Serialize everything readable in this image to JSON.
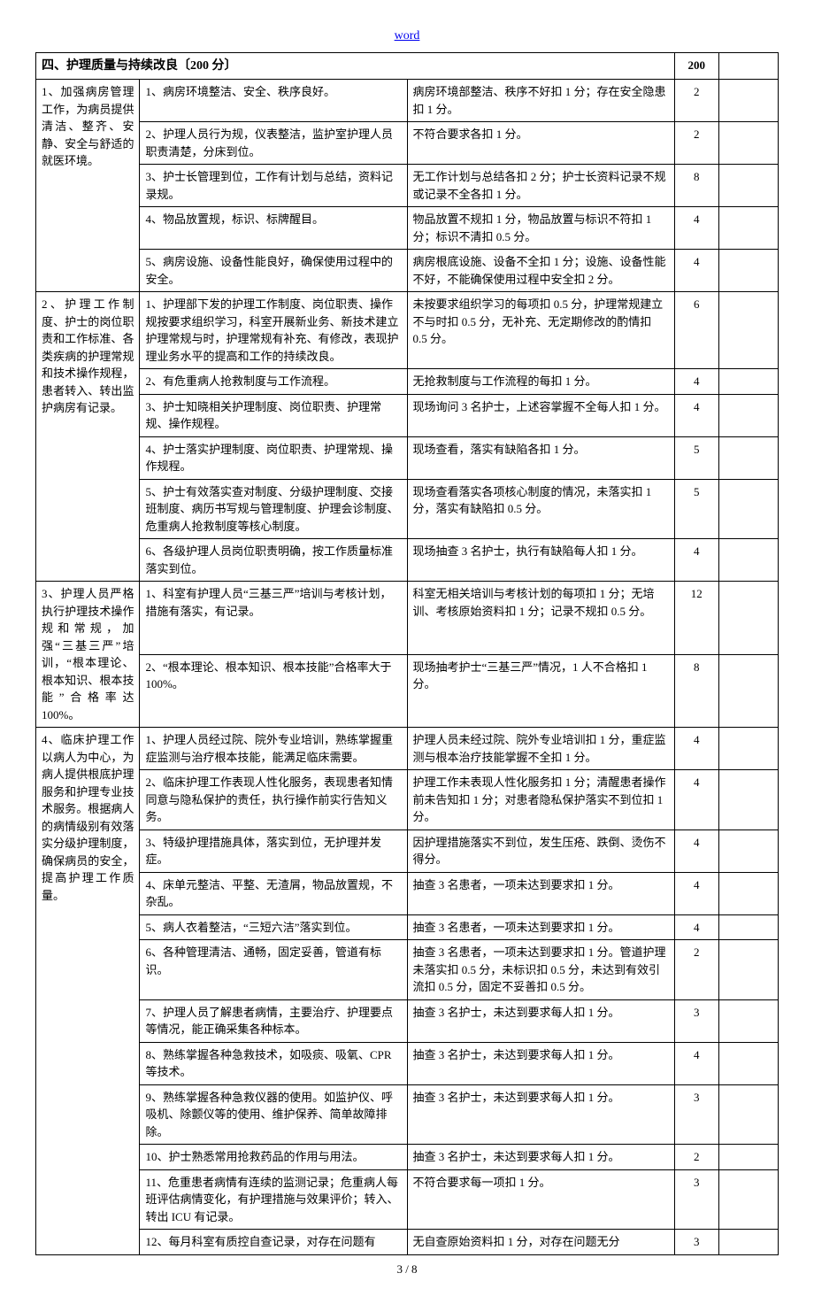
{
  "header_link": "word",
  "footer": "3 / 8",
  "section": {
    "title": "四、护理质量与持续改良〔200 分〕",
    "total_score": "200"
  },
  "groups": [
    {
      "item": "1、加强病房管理工作，为病员提供清洁、整齐、安静、安全与舒适的就医环境。",
      "rows": [
        {
          "standard": "1、病房环境整洁、安全、秩序良好。",
          "deduct": "病房环境部整洁、秩序不好扣 1 分；存在安全隐患扣 1 分。",
          "score": "2"
        },
        {
          "standard": "2、护理人员行为规，仪表整洁，监护室护理人员职责清楚，分床到位。",
          "deduct": "不符合要求各扣 1 分。",
          "score": "2"
        },
        {
          "standard": "3、护士长管理到位，工作有计划与总结，资料记录规。",
          "deduct": "无工作计划与总结各扣 2 分；护士长资料记录不规或记录不全各扣 1 分。",
          "score": "8"
        },
        {
          "standard": "4、物品放置规，标识、标牌醒目。",
          "deduct": "物品放置不规扣 1 分，物品放置与标识不符扣 1 分；标识不清扣 0.5 分。",
          "score": "4"
        },
        {
          "standard": "5、病房设施、设备性能良好，确保使用过程中的安全。",
          "deduct": "病房根底设施、设备不全扣 1 分；设施、设备性能不好，不能确保使用过程中安全扣 2 分。",
          "score": "4"
        }
      ]
    },
    {
      "item": "2、护理工作制度、护士的岗位职责和工作标准、各类疾病的护理常规和技术操作规程，患者转入、转出监护病房有记录。",
      "rows": [
        {
          "standard": "1、护理部下发的护理工作制度、岗位职责、操作规按要求组织学习，科室开展新业务、新技术建立护理常规与时，护理常规有补充、有修改，表现护理业务水平的提高和工作的持续改良。",
          "deduct": "未按要求组织学习的每项扣 0.5 分，护理常规建立不与时扣 0.5 分，无补充、无定期修改的酌情扣 0.5 分。",
          "score": "6"
        },
        {
          "standard": "2、有危重病人抢救制度与工作流程。",
          "deduct": "无抢救制度与工作流程的每扣 1 分。",
          "score": "4"
        },
        {
          "standard": "3、护士知晓相关护理制度、岗位职责、护理常规、操作规程。",
          "deduct": "现场询问 3 名护士，上述容掌握不全每人扣 1 分。",
          "score": "4"
        },
        {
          "standard": "4、护士落实护理制度、岗位职责、护理常规、操作规程。",
          "deduct": "现场查看，落实有缺陷各扣 1 分。",
          "score": "5"
        },
        {
          "standard": "5、护士有效落实查对制度、分级护理制度、交接班制度、病历书写规与管理制度、护理会诊制度、危重病人抢救制度等核心制度。",
          "deduct": "现场查看落实各项核心制度的情况，未落实扣 1 分，落实有缺陷扣 0.5 分。",
          "score": "5"
        },
        {
          "standard": "6、各级护理人员岗位职责明确，按工作质量标准落实到位。",
          "deduct": "现场抽查 3 名护士，执行有缺陷每人扣 1 分。",
          "score": "4"
        }
      ]
    },
    {
      "item": "3、护理人员严格执行护理技术操作规和常规，加强“三基三严”培训，“根本理论、根本知识、根本技能”合格率达 100%。",
      "rows": [
        {
          "standard": "1、科室有护理人员“三基三严”培训与考核计划，措施有落实，有记录。",
          "deduct": "科室无相关培训与考核计划的每项扣 1 分；无培训、考核原始资料扣 1 分；记录不规扣 0.5 分。",
          "score": "12"
        },
        {
          "standard": "2、“根本理论、根本知识、根本技能”合格率大于 100%。",
          "deduct": "现场抽考护士“三基三严”情况，1 人不合格扣 1 分。",
          "score": "8"
        }
      ]
    },
    {
      "item": "4、临床护理工作以病人为中心，为病人提供根底护理服务和护理专业技术服务。根据病人的病情级别有效落实分级护理制度，确保病员的安全，提高护理工作质量。",
      "rows": [
        {
          "standard": "1、护理人员经过院、院外专业培训，熟练掌握重症监测与治疗根本技能，能满足临床需要。",
          "deduct": "护理人员未经过院、院外专业培训扣 1 分，重症监测与根本治疗技能掌握不全扣 1 分。",
          "score": "4"
        },
        {
          "standard": "2、临床护理工作表现人性化服务，表现患者知情同意与隐私保护的责任，执行操作前实行告知义务。",
          "deduct": "护理工作未表现人性化服务扣 1 分；清醒患者操作前未告知扣 1 分；对患者隐私保护落实不到位扣 1 分。",
          "score": "4"
        },
        {
          "standard": "3、特级护理措施具体，落实到位，无护理并发症。",
          "deduct": "因护理措施落实不到位，发生压疮、跌倒、烫伤不得分。",
          "score": "4"
        },
        {
          "standard": "4、床单元整洁、平整、无渣屑，物品放置规，不杂乱。",
          "deduct": "抽查 3 名患者，一项未达到要求扣 1 分。",
          "score": "4"
        },
        {
          "standard": "5、病人衣着整洁，“三短六洁”落实到位。",
          "deduct": "抽查 3 名患者，一项未达到要求扣 1 分。",
          "score": "4"
        },
        {
          "standard": "6、各种管理清洁、通畅，固定妥善，管道有标识。",
          "deduct": "抽查 3 名患者，一项未达到要求扣 1 分。管道护理未落实扣 0.5 分，未标识扣 0.5 分，未达到有效引流扣 0.5 分，固定不妥善扣 0.5 分。",
          "score": "2"
        },
        {
          "standard": "7、护理人员了解患者病情，主要治疗、护理要点等情况，能正确采集各种标本。",
          "deduct": "抽查 3 名护士，未达到要求每人扣 1 分。",
          "score": "3"
        },
        {
          "standard": "8、熟练掌握各种急救技术，如吸痰、吸氧、CPR 等技术。",
          "deduct": "抽查 3 名护士，未达到要求每人扣 1 分。",
          "score": "4"
        },
        {
          "standard": "9、熟练掌握各种急救仪器的使用。如监护仪、呼吸机、除颤仪等的使用、维护保养、简单故障排除。",
          "deduct": "抽查 3 名护士，未达到要求每人扣 1 分。",
          "score": "3"
        },
        {
          "standard": "10、护士熟悉常用抢救药品的作用与用法。",
          "deduct": "抽查 3 名护士，未达到要求每人扣 1 分。",
          "score": "2"
        },
        {
          "standard": "11、危重患者病情有连续的监测记录；危重病人每班评估病情变化，有护理措施与效果评价；转入、转出 ICU 有记录。",
          "deduct": "不符合要求每一项扣 1 分。",
          "score": "3"
        },
        {
          "standard": "12、每月科室有质控自查记录，对存在问题有",
          "deduct": "无自查原始资料扣 1 分，对存在问题无分",
          "score": "3"
        }
      ]
    }
  ]
}
